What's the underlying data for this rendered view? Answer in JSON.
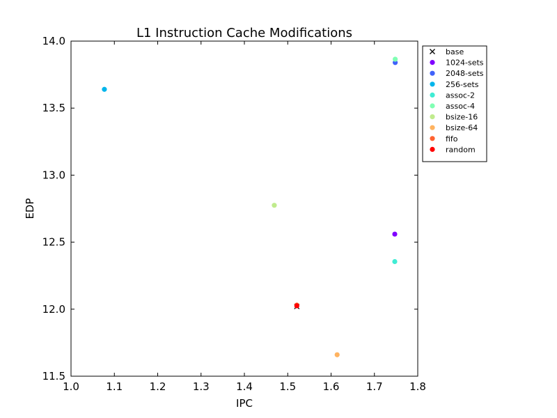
{
  "chart_data": {
    "type": "scatter",
    "title": "L1 Instruction Cache Modifications",
    "xlabel": "IPC",
    "ylabel": "EDP",
    "xlim": [
      1.0,
      1.8
    ],
    "ylim": [
      11.5,
      14.0
    ],
    "xticks": [
      "1.0",
      "1.1",
      "1.2",
      "1.3",
      "1.4",
      "1.5",
      "1.6",
      "1.7",
      "1.8"
    ],
    "yticks": [
      "11.5",
      "12.0",
      "12.5",
      "13.0",
      "13.5",
      "14.0"
    ],
    "grid": false,
    "legend_position": "outside-top-right",
    "series": [
      {
        "name": "base",
        "marker": "x",
        "color": "#000000",
        "points": [
          [
            1.521,
            12.02
          ]
        ]
      },
      {
        "name": "1024-sets",
        "marker": "o",
        "color": "#8000ff",
        "points": [
          [
            1.747,
            12.56
          ]
        ]
      },
      {
        "name": "2048-sets",
        "marker": "o",
        "color": "#4062fa",
        "points": [
          [
            1.748,
            13.84
          ]
        ]
      },
      {
        "name": "256-sets",
        "marker": "o",
        "color": "#00b5eb",
        "points": [
          [
            1.077,
            13.64
          ]
        ]
      },
      {
        "name": "assoc-2",
        "marker": "o",
        "color": "#40ecd4",
        "points": [
          [
            1.747,
            12.355
          ]
        ]
      },
      {
        "name": "assoc-4",
        "marker": "o",
        "color": "#80ffb4",
        "points": [
          [
            1.748,
            13.865
          ]
        ]
      },
      {
        "name": "bsize-16",
        "marker": "o",
        "color": "#c0eb8d",
        "points": [
          [
            1.469,
            12.775
          ]
        ]
      },
      {
        "name": "bsize-64",
        "marker": "o",
        "color": "#ffb360",
        "points": [
          [
            1.614,
            11.66
          ]
        ]
      },
      {
        "name": "fifo",
        "marker": "o",
        "color": "#ff6230",
        "points": [
          [
            1.521,
            12.03
          ]
        ]
      },
      {
        "name": "random",
        "marker": "o",
        "color": "#ff0000",
        "points": [
          [
            1.521,
            12.025
          ]
        ]
      }
    ]
  }
}
